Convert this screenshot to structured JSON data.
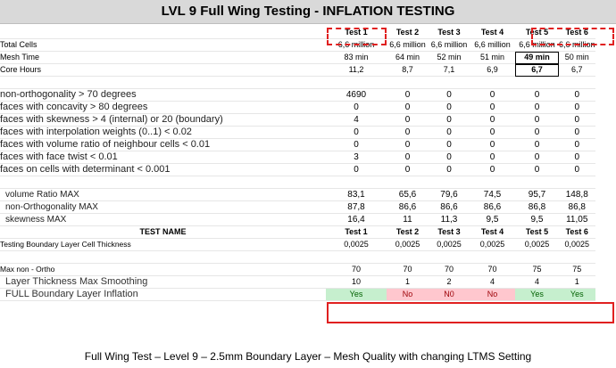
{
  "title": "LVL 9 Full Wing Testing - INFLATION TESTING",
  "tests": [
    "Test 1",
    "Test 2",
    "Test 3",
    "Test 4",
    "Test 5",
    "Test 6"
  ],
  "summary_rows": [
    {
      "label": "Total Cells",
      "values": [
        "6,6 million",
        "6,6 million",
        "6,6 million",
        "6,6 million",
        "6,6 million",
        "6,6 million"
      ]
    },
    {
      "label": "Mesh Time",
      "values": [
        "83 min",
        "64 min",
        "52 min",
        "51 min",
        "49 min",
        "50 min"
      ]
    },
    {
      "label": "Core Hours",
      "values": [
        "11,2",
        "8,7",
        "7,1",
        "6,9",
        "6,7",
        "6,7"
      ]
    }
  ],
  "check_rows": [
    {
      "label": "non-orthogonality > 70  degrees",
      "values": [
        "4690",
        "0",
        "0",
        "0",
        "0",
        "0"
      ]
    },
    {
      "label": "faces with concavity > 80  degrees",
      "values": [
        "0",
        "0",
        "0",
        "0",
        "0",
        "0"
      ]
    },
    {
      "label": "faces with skewness > 4 (internal) or 20 (boundary)",
      "values": [
        "4",
        "0",
        "0",
        "0",
        "0",
        "0"
      ]
    },
    {
      "label": "faces with interpolation weights (0..1)  < 0.02",
      "values": [
        "0",
        "0",
        "0",
        "0",
        "0",
        "0"
      ]
    },
    {
      "label": "faces with volume ratio of neighbour cells < 0.01",
      "values": [
        "0",
        "0",
        "0",
        "0",
        "0",
        "0"
      ]
    },
    {
      "label": "faces with face twist < 0.01",
      "values": [
        "3",
        "0",
        "0",
        "0",
        "0",
        "0"
      ]
    },
    {
      "label": "faces on cells with determinant < 0.001",
      "values": [
        "0",
        "0",
        "0",
        "0",
        "0",
        "0"
      ]
    }
  ],
  "max_rows": [
    {
      "label": "volume Ratio MAX",
      "values": [
        "83,1",
        "65,6",
        "79,6",
        "74,5",
        "95,7",
        "148,8"
      ]
    },
    {
      "label": "non-Orthogonality MAX",
      "values": [
        "87,8",
        "86,6",
        "86,6",
        "86,6",
        "86,8",
        "86,8"
      ]
    },
    {
      "label": "skewness MAX",
      "values": [
        "16,4",
        "11",
        "11,3",
        "9,5",
        "9,5",
        "11,05"
      ]
    }
  ],
  "test_name_label": "TEST NAME",
  "bl_thickness": {
    "label": "Testing Boundary Layer Cell Thickness",
    "values": [
      "0,0025",
      "0,0025",
      "0,0025",
      "0,0025",
      "0,0025",
      "0,0025"
    ]
  },
  "max_non_ortho": {
    "label": "Max non - Ortho",
    "values": [
      "70",
      "70",
      "70",
      "70",
      "75",
      "75"
    ]
  },
  "layer_smoothing": {
    "label": "Layer Thickness Max Smoothing",
    "values": [
      "10",
      "1",
      "2",
      "4",
      "4",
      "1"
    ]
  },
  "inflation": {
    "label": "FULL Boundary Layer Inflation",
    "values": [
      "Yes",
      "No",
      "N0",
      "No",
      "Yes",
      "Yes"
    ],
    "status": [
      "yes",
      "no",
      "no",
      "no",
      "yes",
      "yes"
    ]
  },
  "caption": "Full Wing Test – Level 9 – 2.5mm Boundary Layer – Mesh Quality with changing LTMS Setting",
  "colors": {
    "highlight": "#e02020",
    "yes_bg": "#c6efce",
    "no_bg": "#ffc7ce",
    "title_bg": "#d9d9d9"
  }
}
